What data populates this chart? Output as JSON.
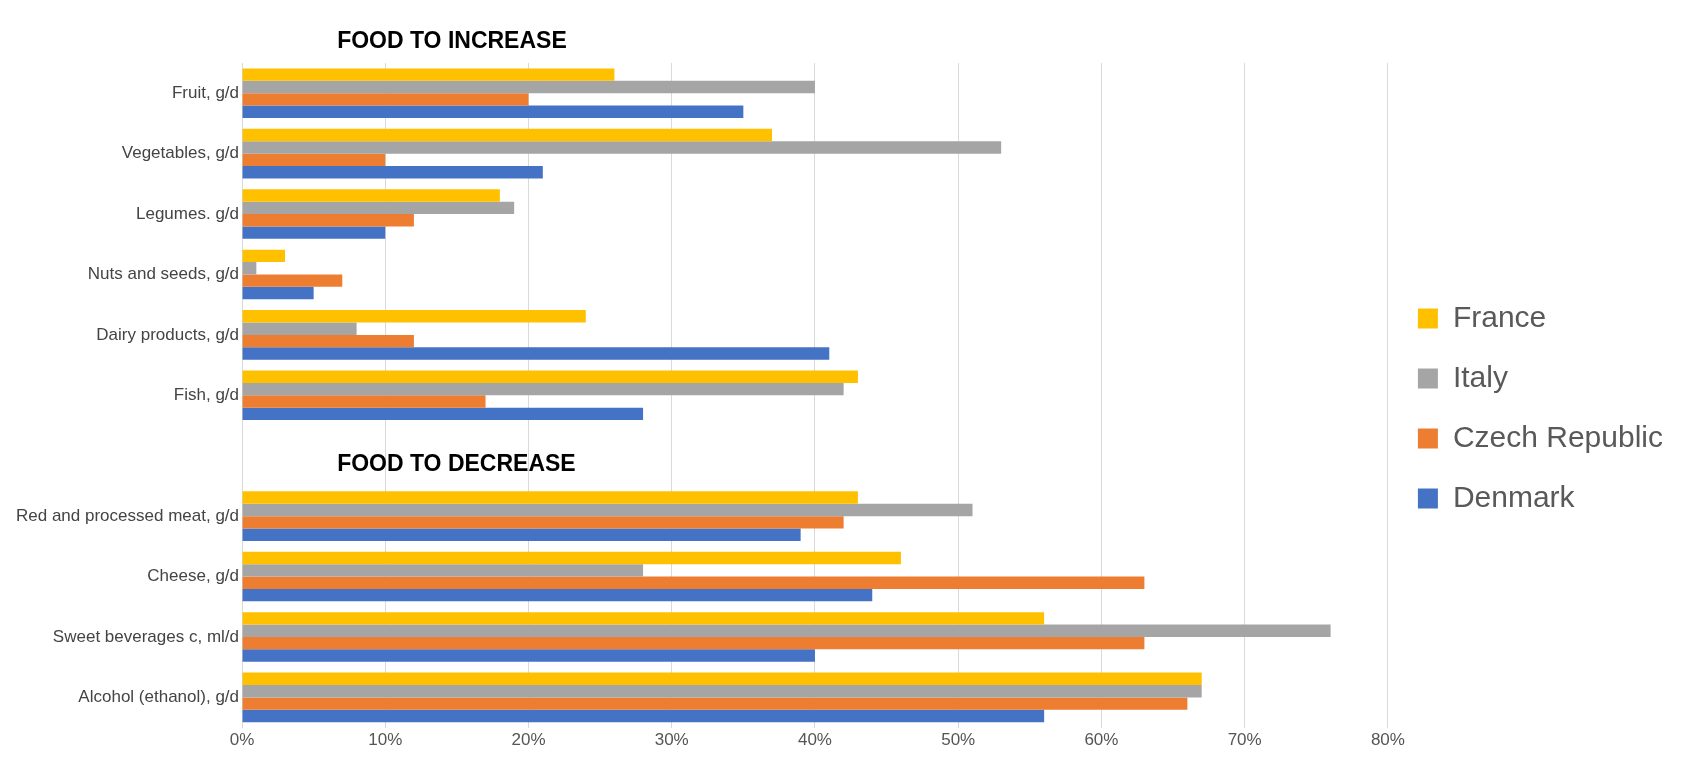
{
  "chart_data": {
    "type": "bar",
    "orientation": "horizontal",
    "categories": [
      "Fruit, g/d",
      "Vegetables, g/d",
      "Legumes. g/d",
      "Nuts and seeds, g/d",
      "Dairy products, g/d",
      "Fish, g/d",
      null,
      "Red and processed meat, g/d",
      "Cheese, g/d",
      "Sweet beverages c, ml/d",
      "Alcohol (ethanol), g/d"
    ],
    "series": [
      {
        "name": "France",
        "color": "#ffc000",
        "values": [
          26,
          37,
          18,
          3,
          24,
          43,
          null,
          43,
          46,
          56,
          67
        ]
      },
      {
        "name": "Italy",
        "color": "#a5a5a5",
        "values": [
          40,
          53,
          19,
          1,
          8,
          42,
          null,
          51,
          28,
          76,
          67
        ]
      },
      {
        "name": "Czech Republic",
        "color": "#ed7d31",
        "values": [
          20,
          10,
          12,
          7,
          12,
          17,
          null,
          42,
          63,
          63,
          66
        ]
      },
      {
        "name": "Denmark",
        "color": "#4472c4",
        "values": [
          35,
          21,
          10,
          5,
          41,
          28,
          null,
          39,
          44,
          40,
          56
        ]
      }
    ],
    "xlim": [
      0,
      80
    ],
    "xticks": [
      {
        "value": 0,
        "label": "0%"
      },
      {
        "value": 10,
        "label": "10%"
      },
      {
        "value": 20,
        "label": "20%"
      },
      {
        "value": 30,
        "label": "30%"
      },
      {
        "value": 40,
        "label": "40%"
      },
      {
        "value": 50,
        "label": "50%"
      },
      {
        "value": 60,
        "label": "60%"
      },
      {
        "value": 70,
        "label": "70%"
      },
      {
        "value": 80,
        "label": "80%"
      }
    ],
    "annotations": [
      "FOOD TO INCREASE",
      "FOOD TO DECREASE"
    ],
    "grid": "x",
    "legend": "right"
  }
}
